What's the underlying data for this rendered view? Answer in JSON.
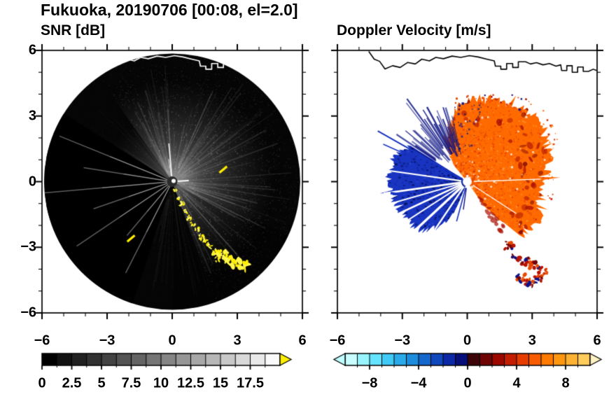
{
  "main_title": "Fukuoka, 20190706 [00:08, el=2.0]",
  "station": "Fukuoka",
  "date": "20190706",
  "time": "00:08",
  "elevation": "2.0",
  "chart_data": [
    {
      "id": "snr",
      "type": "heatmap",
      "title": "SNR [dB]",
      "variable": "radar signal-to-noise ratio PPI scan",
      "units": "dB",
      "xlim": [
        -6,
        6
      ],
      "ylim": [
        -6,
        6
      ],
      "xtick_vals": [
        -6,
        -3,
        0,
        3,
        6
      ],
      "xtick_labels": [
        "−6",
        "−3",
        "0",
        "3",
        "6"
      ],
      "ytick_vals": [
        6,
        3,
        0,
        -3,
        -6
      ],
      "ytick_labels": [
        "6",
        "3",
        "0",
        "−3",
        "−6"
      ],
      "scan_radius": 5.9,
      "colorbar": {
        "range": [
          0,
          20
        ],
        "tick_vals": [
          0,
          2.5,
          5,
          7.5,
          10,
          12.5,
          15,
          17.5
        ],
        "tick_labels": [
          "0",
          "2.5",
          "5",
          "7.5",
          "10",
          "12.5",
          "15",
          "17.5"
        ],
        "segments": 16,
        "scale": "grayscale",
        "over_arrow_color": "#ffee00"
      }
    },
    {
      "id": "doppler",
      "type": "heatmap",
      "title": "Doppler Velocity [m/s]",
      "variable": "radar Doppler velocity PPI scan",
      "units": "m/s",
      "xlim": [
        -6,
        6
      ],
      "ylim": [
        -6,
        6
      ],
      "xtick_vals": [
        -6,
        -3,
        0,
        3,
        6
      ],
      "xtick_labels": [
        "−6",
        "−3",
        "0",
        "3",
        "6"
      ],
      "ytick_vals": [
        6,
        3,
        0,
        -3,
        -6
      ],
      "ytick_labels": [],
      "colorbar": {
        "range": [
          -10,
          10
        ],
        "tick_vals": [
          -8,
          -4,
          0,
          4,
          8
        ],
        "tick_labels": [
          "−8",
          "−4",
          "0",
          "4",
          "8"
        ],
        "segments": 20,
        "colors": [
          "#c8feff",
          "#96f4ff",
          "#64e4ff",
          "#41caf6",
          "#2baaea",
          "#1c8cdd",
          "#1468cd",
          "#0f47bd",
          "#0b28a6",
          "#060e7a",
          "#3c0406",
          "#6e0404",
          "#9c0800",
          "#c41e00",
          "#e63c00",
          "#f75c00",
          "#ff7a00",
          "#ff9610",
          "#ffb132",
          "#ffcc5c"
        ],
        "under_arrow_color": "#bfffff",
        "over_arrow_color": "#fff2c2"
      }
    }
  ],
  "coastline": [
    [
      -4.55,
      5.95
    ],
    [
      -4.3,
      5.6
    ],
    [
      -4.05,
      5.5
    ],
    [
      -3.8,
      5.15
    ],
    [
      -3.45,
      5.3
    ],
    [
      -3.1,
      5.22
    ],
    [
      -2.75,
      5.45
    ],
    [
      -2.4,
      5.38
    ],
    [
      -2.1,
      5.6
    ],
    [
      -1.75,
      5.52
    ],
    [
      -1.45,
      5.68
    ],
    [
      -1.1,
      5.62
    ],
    [
      -0.7,
      5.74
    ],
    [
      -0.3,
      5.68
    ],
    [
      0.1,
      5.76
    ],
    [
      0.5,
      5.7
    ],
    [
      0.9,
      5.6
    ],
    [
      1.25,
      5.52
    ],
    [
      1.3,
      5.28
    ],
    [
      1.55,
      5.28
    ],
    [
      1.55,
      5.14
    ],
    [
      1.82,
      5.14
    ],
    [
      1.82,
      5.4
    ],
    [
      2.1,
      5.4
    ],
    [
      2.1,
      5.22
    ],
    [
      2.36,
      5.22
    ],
    [
      2.36,
      5.48
    ],
    [
      2.7,
      5.48
    ],
    [
      2.92,
      5.38
    ],
    [
      3.2,
      5.44
    ],
    [
      3.5,
      5.34
    ],
    [
      3.8,
      5.4
    ],
    [
      4.1,
      5.28
    ],
    [
      4.32,
      5.34
    ],
    [
      4.36,
      5.08
    ],
    [
      4.6,
      5.08
    ],
    [
      4.6,
      5.3
    ],
    [
      4.85,
      5.3
    ],
    [
      4.85,
      5.0
    ],
    [
      5.1,
      5.0
    ],
    [
      5.1,
      5.24
    ],
    [
      5.36,
      5.24
    ],
    [
      5.36,
      5.04
    ],
    [
      5.6,
      5.04
    ],
    [
      5.82,
      5.14
    ],
    [
      5.98,
      5.08
    ]
  ],
  "snr_scene": {
    "background_color": "#050505",
    "bright_fan_az": [
      -70,
      125
    ],
    "dim_fan_az": [
      125,
      150
    ],
    "blocked_az": [
      148,
      252
    ],
    "survived_rays_az": [
      158,
      171,
      185,
      199,
      214,
      230,
      243
    ],
    "clutter_color": "#ffee00",
    "clutter_chain": [
      [
        0.15,
        -0.4,
        3
      ],
      [
        0.3,
        -0.75,
        3
      ],
      [
        0.45,
        -1.05,
        4
      ],
      [
        0.6,
        -1.35,
        3
      ],
      [
        0.75,
        -1.65,
        4
      ],
      [
        0.95,
        -1.95,
        4
      ],
      [
        1.15,
        -2.2,
        4
      ],
      [
        1.35,
        -2.5,
        5
      ],
      [
        1.55,
        -2.75,
        4
      ],
      [
        1.75,
        -2.95,
        5
      ],
      [
        2.0,
        -3.15,
        6
      ],
      [
        2.25,
        -3.3,
        6
      ],
      [
        2.5,
        -3.25,
        5
      ],
      [
        2.45,
        -3.55,
        6
      ],
      [
        2.7,
        -3.6,
        7
      ],
      [
        2.95,
        -3.75,
        8
      ],
      [
        3.2,
        -3.85,
        7
      ],
      [
        3.45,
        -3.8,
        6
      ],
      [
        2.1,
        -3.55,
        4
      ],
      [
        1.9,
        -3.3,
        3
      ]
    ],
    "clutter_dashes": [
      [
        2.35,
        0.55
      ],
      [
        -1.9,
        -2.6
      ]
    ]
  },
  "doppler_scene": {
    "negative_color": "#1834c0",
    "positive_color": "#ff6a00",
    "blue_sector": [
      [
        148,
        3.2
      ],
      [
        160,
        3.5
      ],
      [
        172,
        3.6
      ],
      [
        185,
        3.55
      ],
      [
        200,
        3.4
      ],
      [
        215,
        3.25
      ],
      [
        228,
        3.0
      ],
      [
        240,
        2.3
      ],
      [
        248,
        1.4
      ]
    ],
    "orange_profile": [
      [
        -55,
        1.2
      ],
      [
        -45,
        3.4
      ],
      [
        -30,
        3.7
      ],
      [
        -15,
        3.5
      ],
      [
        0,
        3.6
      ],
      [
        15,
        3.9
      ],
      [
        30,
        4.2
      ],
      [
        45,
        4.35
      ],
      [
        60,
        4.1
      ],
      [
        75,
        3.9
      ],
      [
        90,
        3.7
      ],
      [
        100,
        3.3
      ],
      [
        110,
        2.6
      ],
      [
        120,
        1.8
      ],
      [
        130,
        1.0
      ]
    ],
    "white_rays_az": [
      172,
      188,
      196,
      205,
      213,
      223,
      236
    ],
    "needles": [
      [
        150.5,
        4.75
      ],
      [
        156,
        4.25
      ]
    ],
    "echo_clusters": [
      [
        1.95,
        -2.9
      ],
      [
        2.3,
        -3.45
      ],
      [
        2.7,
        -3.65
      ],
      [
        3.1,
        -3.85
      ],
      [
        3.45,
        -4.1
      ],
      [
        2.5,
        -4.4
      ],
      [
        2.9,
        -4.6
      ],
      [
        3.3,
        -4.45
      ]
    ],
    "isolated_blue": [
      [
        -3.35,
        -0.55
      ],
      [
        -3.0,
        -0.25
      ]
    ]
  }
}
